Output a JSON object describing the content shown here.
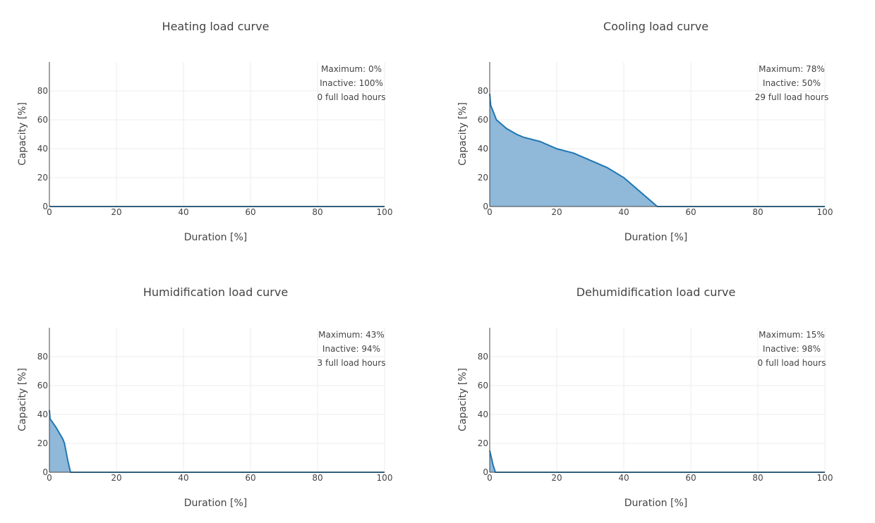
{
  "colors": {
    "line": "#1f77b4",
    "fill": "#8fb8d9",
    "grid": "#eeeeee",
    "axis": "#444444"
  },
  "chart_data": [
    {
      "type": "area",
      "title": "Heating load curve",
      "xlabel": "Duration [%]",
      "ylabel": "Capacity [%]",
      "xlim": [
        0,
        100
      ],
      "ylim": [
        0,
        100
      ],
      "xticks": [
        0,
        20,
        40,
        60,
        80,
        100
      ],
      "yticks": [
        0,
        20,
        40,
        60,
        80
      ],
      "grid": true,
      "annotations": [
        "Maximum: 0%",
        "Inactive: 100%",
        "0 full load hours"
      ],
      "x": [
        0,
        100
      ],
      "y": [
        0,
        0
      ]
    },
    {
      "type": "area",
      "title": "Cooling load curve",
      "xlabel": "Duration [%]",
      "ylabel": "Capacity [%]",
      "xlim": [
        0,
        100
      ],
      "ylim": [
        0,
        100
      ],
      "xticks": [
        0,
        20,
        40,
        60,
        80,
        100
      ],
      "yticks": [
        0,
        20,
        40,
        60,
        80
      ],
      "grid": true,
      "annotations": [
        "Maximum: 78%",
        "Inactive: 50%",
        "29 full load hours"
      ],
      "x": [
        0,
        0.3,
        1,
        2,
        5,
        8,
        10,
        15,
        20,
        25,
        30,
        35,
        40,
        45,
        50,
        100
      ],
      "y": [
        78,
        70,
        66,
        60,
        54,
        50,
        48,
        45,
        40,
        37,
        32,
        27,
        20,
        10,
        0,
        0
      ]
    },
    {
      "type": "area",
      "title": "Humidification load curve",
      "xlabel": "Duration [%]",
      "ylabel": "Capacity [%]",
      "xlim": [
        0,
        100
      ],
      "ylim": [
        0,
        100
      ],
      "xticks": [
        0,
        20,
        40,
        60,
        80,
        100
      ],
      "yticks": [
        0,
        20,
        40,
        60,
        80
      ],
      "grid": true,
      "annotations": [
        "Maximum: 43%",
        "Inactive: 94%",
        "3 full load hours"
      ],
      "x": [
        0,
        0.2,
        2,
        4,
        4.5,
        5.5,
        6.3,
        100
      ],
      "y": [
        43,
        37,
        31,
        23,
        20,
        8,
        0,
        0
      ]
    },
    {
      "type": "area",
      "title": "Dehumidification load curve",
      "xlabel": "Duration [%]",
      "ylabel": "Capacity [%]",
      "xlim": [
        0,
        100
      ],
      "ylim": [
        0,
        100
      ],
      "xticks": [
        0,
        20,
        40,
        60,
        80,
        100
      ],
      "yticks": [
        0,
        20,
        40,
        60,
        80
      ],
      "grid": true,
      "annotations": [
        "Maximum: 15%",
        "Inactive: 98%",
        "0 full load hours"
      ],
      "x": [
        0,
        0.5,
        1,
        1.7,
        100
      ],
      "y": [
        15,
        10,
        5,
        0,
        0
      ]
    }
  ]
}
